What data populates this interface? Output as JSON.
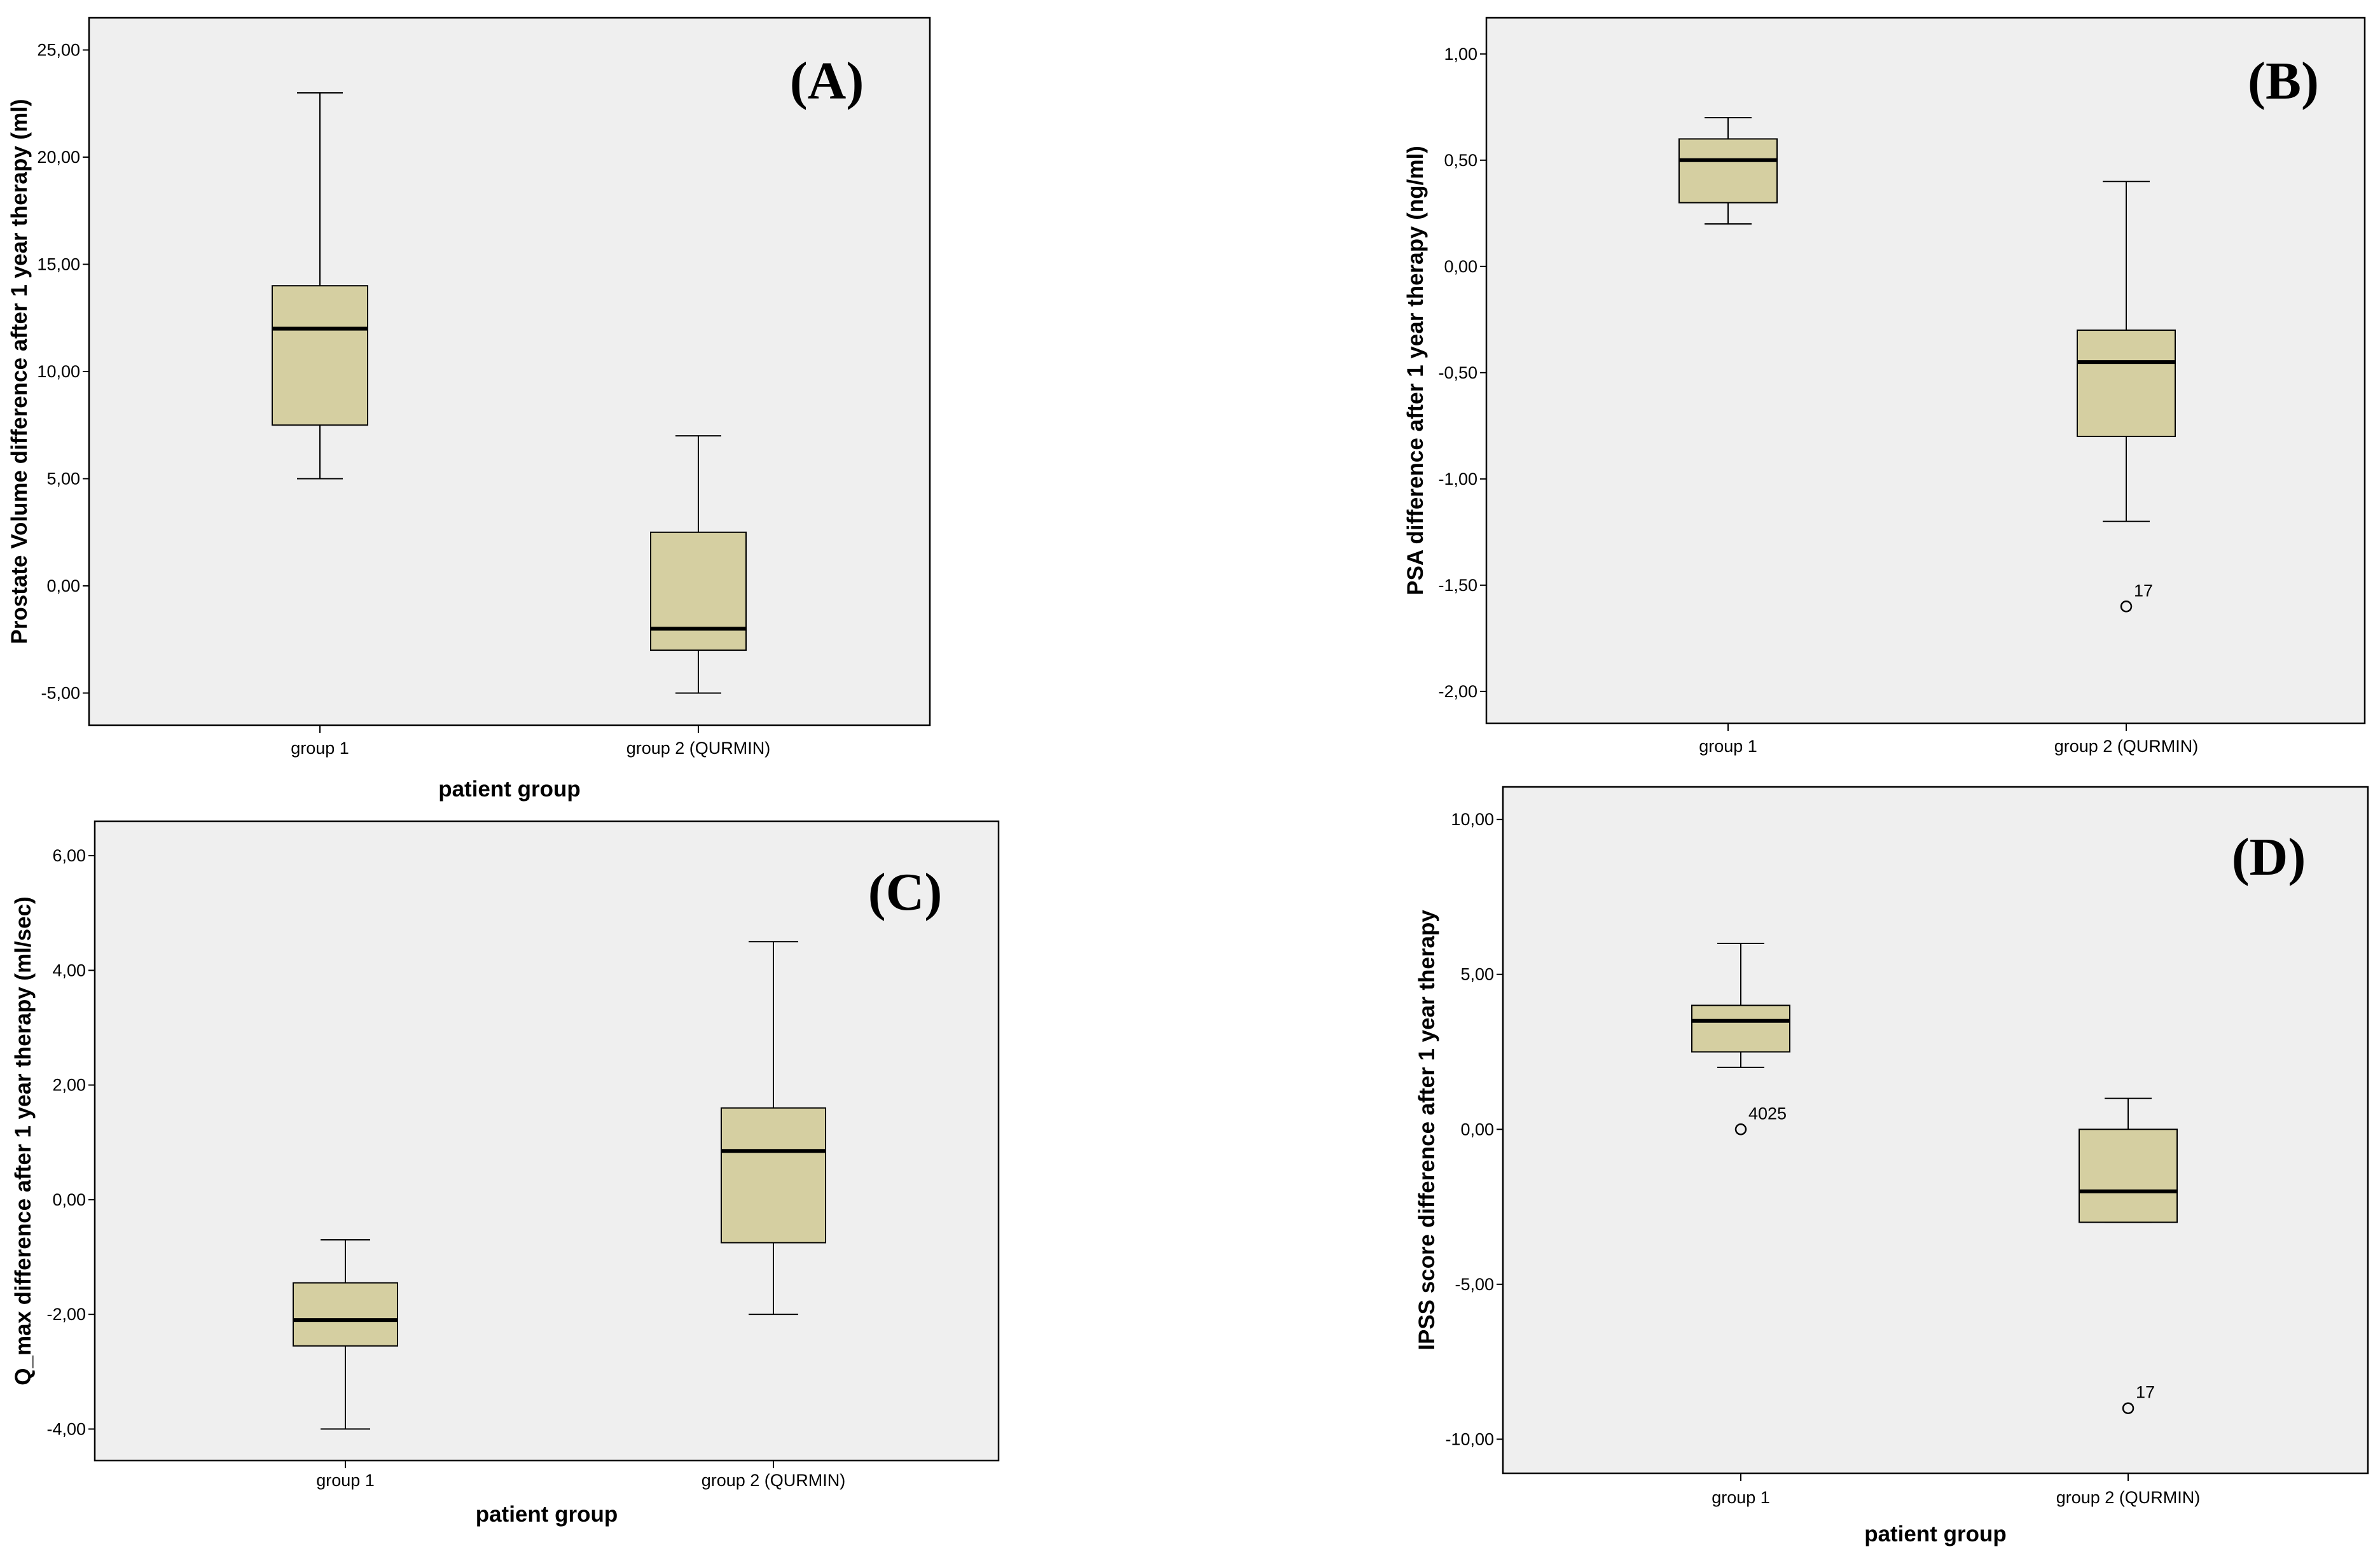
{
  "figure": {
    "colors": {
      "plot_bg": "#efefef",
      "box_fill": "#d5cfa1",
      "line": "#000000"
    }
  },
  "chart_data": [
    {
      "panel": "(A)",
      "type": "boxplot",
      "ylabel": "Prostate Volume difference after 1 year therapy (ml)",
      "xlabel": "patient group",
      "ylim": [
        -6.5,
        26.5
      ],
      "yticks": [
        25,
        20,
        15,
        10,
        5,
        0,
        -5
      ],
      "ytick_labels": [
        "25,00",
        "20,00",
        "15,00",
        "10,00",
        "5,00",
        "0,00",
        "-5,00"
      ],
      "categories": [
        "group 1",
        "group 2 (QURMIN)"
      ],
      "boxes": [
        {
          "whisker_low": 5.0,
          "q1": 7.5,
          "median": 12.0,
          "q3": 14.0,
          "whisker_high": 23.0,
          "outliers": []
        },
        {
          "whisker_low": -5.0,
          "q1": -3.0,
          "median": -2.0,
          "q3": 2.5,
          "whisker_high": 7.0,
          "outliers": []
        }
      ]
    },
    {
      "panel": "(B)",
      "type": "boxplot",
      "ylabel": "PSA difference after 1 year therapy (ng/ml)",
      "xlabel": "",
      "ylim": [
        -2.15,
        1.17
      ],
      "yticks": [
        1,
        0.5,
        0,
        -0.5,
        -1,
        -1.5,
        -2
      ],
      "ytick_labels": [
        "1,00",
        "0,50",
        "0,00",
        "-0,50",
        "-1,00",
        "-1,50",
        "-2,00"
      ],
      "categories": [
        "group 1",
        "group 2 (QURMIN)"
      ],
      "boxes": [
        {
          "whisker_low": 0.2,
          "q1": 0.3,
          "median": 0.5,
          "q3": 0.6,
          "whisker_high": 0.7,
          "outliers": []
        },
        {
          "whisker_low": -1.2,
          "q1": -0.8,
          "median": -0.45,
          "q3": -0.3,
          "whisker_high": 0.4,
          "outliers": [
            {
              "value": -1.6,
              "label": "17"
            }
          ]
        }
      ]
    },
    {
      "panel": "(C)",
      "type": "boxplot",
      "ylabel": "Q_max difference after 1 year therapy (ml/sec)",
      "xlabel": "patient group",
      "ylim": [
        -4.55,
        6.6
      ],
      "yticks": [
        6,
        4,
        2,
        0,
        -2,
        -4
      ],
      "ytick_labels": [
        "6,00",
        "4,00",
        "2,00",
        "0,00",
        "-2,00",
        "-4,00"
      ],
      "categories": [
        "group 1",
        "group 2 (QURMIN)"
      ],
      "boxes": [
        {
          "whisker_low": -4.0,
          "q1": -2.55,
          "median": -2.1,
          "q3": -1.45,
          "whisker_high": -0.7,
          "outliers": []
        },
        {
          "whisker_low": -2.0,
          "q1": -0.75,
          "median": 0.85,
          "q3": 1.6,
          "whisker_high": 4.5,
          "outliers": []
        }
      ]
    },
    {
      "panel": "(D)",
      "type": "boxplot",
      "ylabel": "IPSS score difference after 1 year therapy",
      "xlabel": "patient group",
      "ylim": [
        -11.1,
        11.05
      ],
      "yticks": [
        10,
        5,
        0,
        -5,
        -10
      ],
      "ytick_labels": [
        "10,00",
        "5,00",
        "0,00",
        "-5,00",
        "-10,00"
      ],
      "categories": [
        "group 1",
        "group 2 (QURMIN)"
      ],
      "boxes": [
        {
          "whisker_low": 2.0,
          "q1": 2.5,
          "median": 3.5,
          "q3": 4.0,
          "whisker_high": 6.0,
          "outliers": [
            {
              "value": 0.0,
              "label": "4025"
            }
          ]
        },
        {
          "whisker_low": -3.0,
          "q1": -3.0,
          "median": -2.0,
          "q3": 0.0,
          "whisker_high": 1.0,
          "outliers": [
            {
              "value": -9.0,
              "label": "17"
            }
          ]
        }
      ]
    }
  ]
}
